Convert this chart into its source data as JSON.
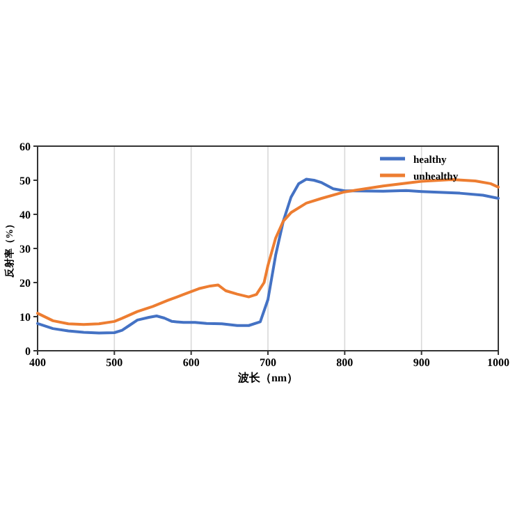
{
  "chart_data": {
    "type": "line",
    "xlabel": "波长（nm）",
    "ylabel": "反射率（%）",
    "xlim": [
      400,
      1000
    ],
    "ylim": [
      0,
      60
    ],
    "xticks": [
      400,
      500,
      600,
      700,
      800,
      900,
      1000
    ],
    "yticks": [
      0,
      10,
      20,
      30,
      40,
      50,
      60
    ],
    "grid": "x",
    "legend": "top right",
    "series": [
      {
        "name": "healthy",
        "color": "#4472c4",
        "x": [
          400,
          420,
          440,
          460,
          480,
          500,
          510,
          520,
          530,
          545,
          555,
          565,
          575,
          590,
          605,
          620,
          640,
          660,
          675,
          690,
          700,
          710,
          720,
          730,
          740,
          750,
          760,
          770,
          785,
          800,
          850,
          880,
          900,
          950,
          980,
          1000
        ],
        "values": [
          8,
          6.5,
          5.8,
          5.4,
          5.2,
          5.3,
          6,
          7.5,
          9,
          9.8,
          10.2,
          9.6,
          8.6,
          8.3,
          8.3,
          8,
          7.9,
          7.4,
          7.4,
          8.5,
          15,
          28,
          38,
          45,
          49,
          50.3,
          50,
          49.3,
          47.5,
          46.9,
          46.8,
          47,
          46.7,
          46.2,
          45.6,
          44.7
        ]
      },
      {
        "name": "unhealthy",
        "color": "#ed7d31",
        "x": [
          400,
          420,
          440,
          460,
          480,
          500,
          510,
          530,
          550,
          570,
          590,
          610,
          625,
          635,
          645,
          660,
          675,
          685,
          695,
          700,
          710,
          720,
          730,
          750,
          770,
          800,
          850,
          900,
          940,
          970,
          990,
          1000
        ],
        "values": [
          11,
          8.8,
          7.9,
          7.7,
          7.9,
          8.6,
          9.5,
          11.5,
          13,
          14.8,
          16.5,
          18.2,
          19,
          19.3,
          17.6,
          16.6,
          15.8,
          16.5,
          20,
          25,
          33,
          38,
          40.5,
          43.3,
          44.7,
          46.6,
          48.3,
          49.7,
          50.2,
          49.8,
          49,
          48
        ]
      }
    ]
  }
}
